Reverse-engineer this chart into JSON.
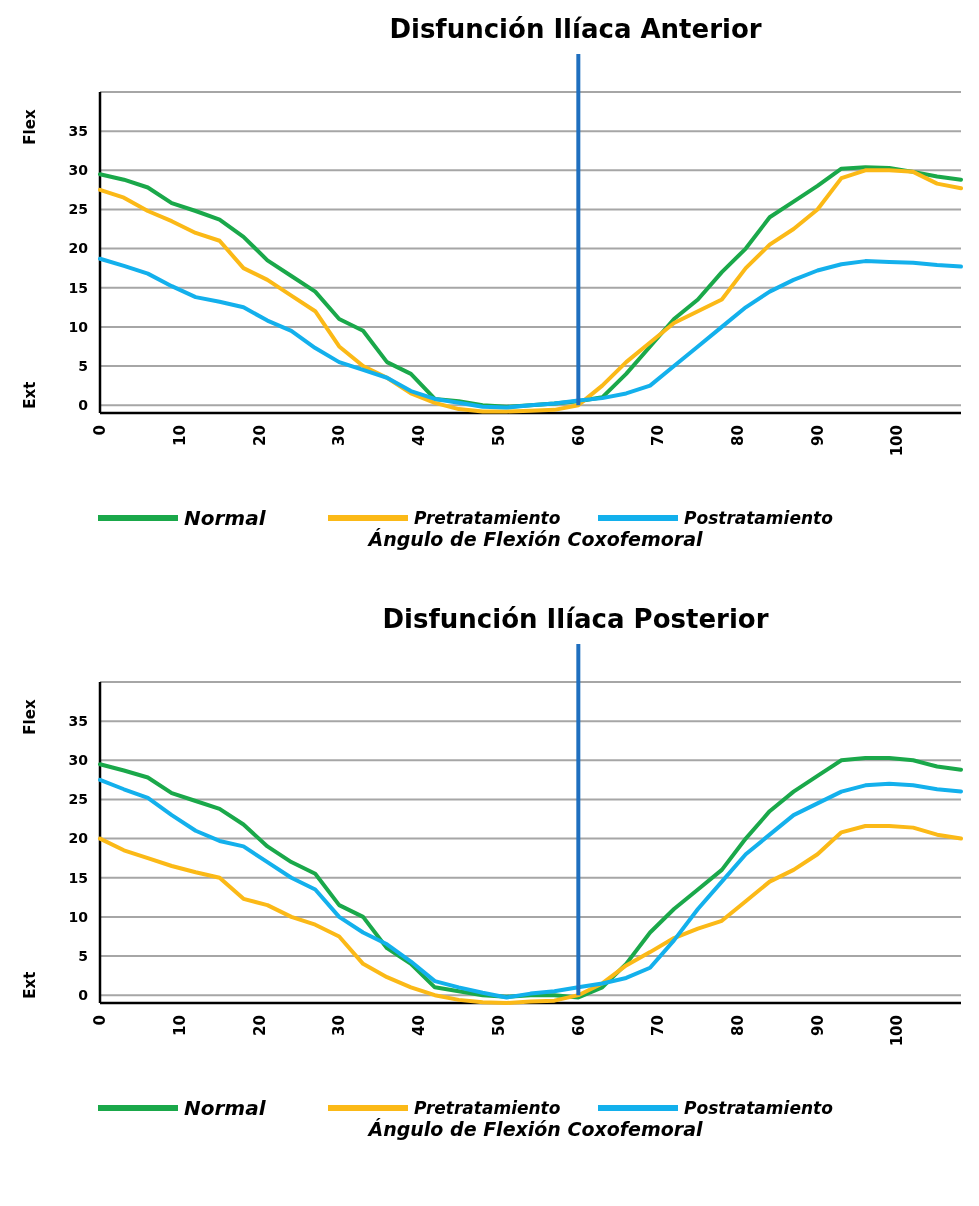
{
  "chart_data": [
    {
      "type": "line",
      "title": "Disfunción Ilíaca Anterior",
      "xlabel": "Ángulo de Flexión Coxofemoral",
      "annotations": [
        "Flex",
        "Ext"
      ],
      "x": [
        0,
        3,
        6,
        9,
        12,
        15,
        18,
        21,
        24,
        27,
        30,
        33,
        36,
        39,
        42,
        45,
        48,
        51,
        54,
        57,
        60,
        63,
        66,
        69,
        72,
        75,
        78,
        81,
        84,
        87,
        90,
        93,
        96,
        99,
        102,
        105,
        108
      ],
      "xlim": [
        0,
        108
      ],
      "xticks": [
        0,
        10,
        20,
        30,
        40,
        50,
        60,
        70,
        80,
        90,
        100
      ],
      "ylim": [
        -1,
        40
      ],
      "yticks": [
        0,
        5,
        10,
        15,
        20,
        25,
        30,
        35,
        {
          "value": 40,
          "label": null
        }
      ],
      "grid": "y",
      "legend": "bottom",
      "marker": "none",
      "line_style": "solid",
      "ref_lines": [
        {
          "axis": "x",
          "value": 60,
          "color": "#1f6fbf"
        }
      ],
      "series": [
        {
          "name": "Normal",
          "color": "#1aa84a",
          "values": [
            29.5,
            28.8,
            27.8,
            25.8,
            24.8,
            23.7,
            21.5,
            18.5,
            16.5,
            14.5,
            11,
            9.5,
            5.5,
            4,
            0.8,
            0.5,
            0,
            -0.2,
            0,
            0.2,
            0.5,
            1,
            4,
            7.5,
            11,
            13.5,
            17,
            20,
            24,
            26,
            28,
            30.2,
            30.4,
            30.3,
            29.8,
            29.2,
            28.8
          ]
        },
        {
          "name": "Pretratamiento",
          "color": "#fbb917",
          "values": [
            27.5,
            26.5,
            24.8,
            23.5,
            22,
            21,
            17.5,
            16,
            14,
            12,
            7.5,
            5,
            3.5,
            1.5,
            0.3,
            -0.5,
            -0.8,
            -0.8,
            -0.7,
            -0.6,
            0,
            2.5,
            5.5,
            8,
            10.5,
            12,
            13.5,
            17.5,
            20.5,
            22.5,
            25,
            29,
            30,
            30,
            29.8,
            28.3,
            27.7
          ]
        },
        {
          "name": "Postratamiento",
          "color": "#13b0ec",
          "values": [
            18.7,
            17.8,
            16.8,
            15.2,
            13.8,
            13.2,
            12.5,
            10.8,
            9.5,
            7.3,
            5.5,
            4.5,
            3.5,
            1.8,
            0.8,
            0.3,
            -0.2,
            -0.3,
            0,
            0.2,
            0.6,
            0.9,
            1.5,
            2.5,
            5,
            7.5,
            10,
            12.5,
            14.5,
            16,
            17.2,
            18,
            18.4,
            18.3,
            18.2,
            17.9,
            17.7
          ]
        }
      ]
    },
    {
      "type": "line",
      "title": "Disfunción Ilíaca Posterior",
      "xlabel": "Ángulo de Flexión Coxofemoral",
      "annotations": [
        "Flex",
        "Ext"
      ],
      "x": [
        0,
        3,
        6,
        9,
        12,
        15,
        18,
        21,
        24,
        27,
        30,
        33,
        36,
        39,
        42,
        45,
        48,
        51,
        54,
        57,
        60,
        63,
        66,
        69,
        72,
        75,
        78,
        81,
        84,
        87,
        90,
        93,
        96,
        99,
        102,
        105,
        108
      ],
      "xlim": [
        0,
        108
      ],
      "xticks": [
        0,
        10,
        20,
        30,
        40,
        50,
        60,
        70,
        80,
        90,
        100
      ],
      "ylim": [
        -1,
        40
      ],
      "yticks": [
        0,
        5,
        10,
        15,
        20,
        25,
        30,
        35,
        {
          "value": 40,
          "label": null
        }
      ],
      "grid": "y",
      "legend": "bottom",
      "marker": "none",
      "line_style": "solid",
      "ref_lines": [
        {
          "axis": "x",
          "value": 60,
          "color": "#1f6fbf"
        }
      ],
      "series": [
        {
          "name": "Normal",
          "color": "#1aa84a",
          "values": [
            29.5,
            28.7,
            27.8,
            25.8,
            24.8,
            23.8,
            21.8,
            19,
            17,
            15.5,
            11.5,
            10,
            6,
            4,
            1,
            0.5,
            0,
            -0.2,
            0,
            0,
            -0.3,
            1,
            4,
            8,
            11,
            13.5,
            16,
            20,
            23.5,
            26,
            28,
            30,
            30.3,
            30.3,
            30,
            29.2,
            28.8
          ]
        },
        {
          "name": "Pretratamiento",
          "color": "#fbb917",
          "values": [
            20,
            18.5,
            17.5,
            16.5,
            15.7,
            15,
            12.3,
            11.5,
            10,
            9,
            7.5,
            4,
            2.3,
            1,
            0,
            -0.6,
            -0.9,
            -1,
            -0.8,
            -0.7,
            0,
            1.5,
            3.8,
            5.5,
            7.3,
            8.5,
            9.5,
            12,
            14.5,
            16,
            18,
            20.8,
            21.6,
            21.6,
            21.4,
            20.5,
            20
          ]
        },
        {
          "name": "Postratamiento",
          "color": "#13b0ec",
          "values": [
            27.5,
            26.3,
            25.2,
            23,
            21,
            19.7,
            19,
            17,
            15,
            13.5,
            10,
            8,
            6.5,
            4.3,
            1.8,
            1,
            0.3,
            -0.3,
            0.2,
            0.5,
            1,
            1.5,
            2.2,
            3.5,
            7,
            11,
            14.5,
            18,
            20.5,
            23,
            24.5,
            26,
            26.8,
            27,
            26.8,
            26.3,
            26
          ]
        }
      ]
    }
  ]
}
